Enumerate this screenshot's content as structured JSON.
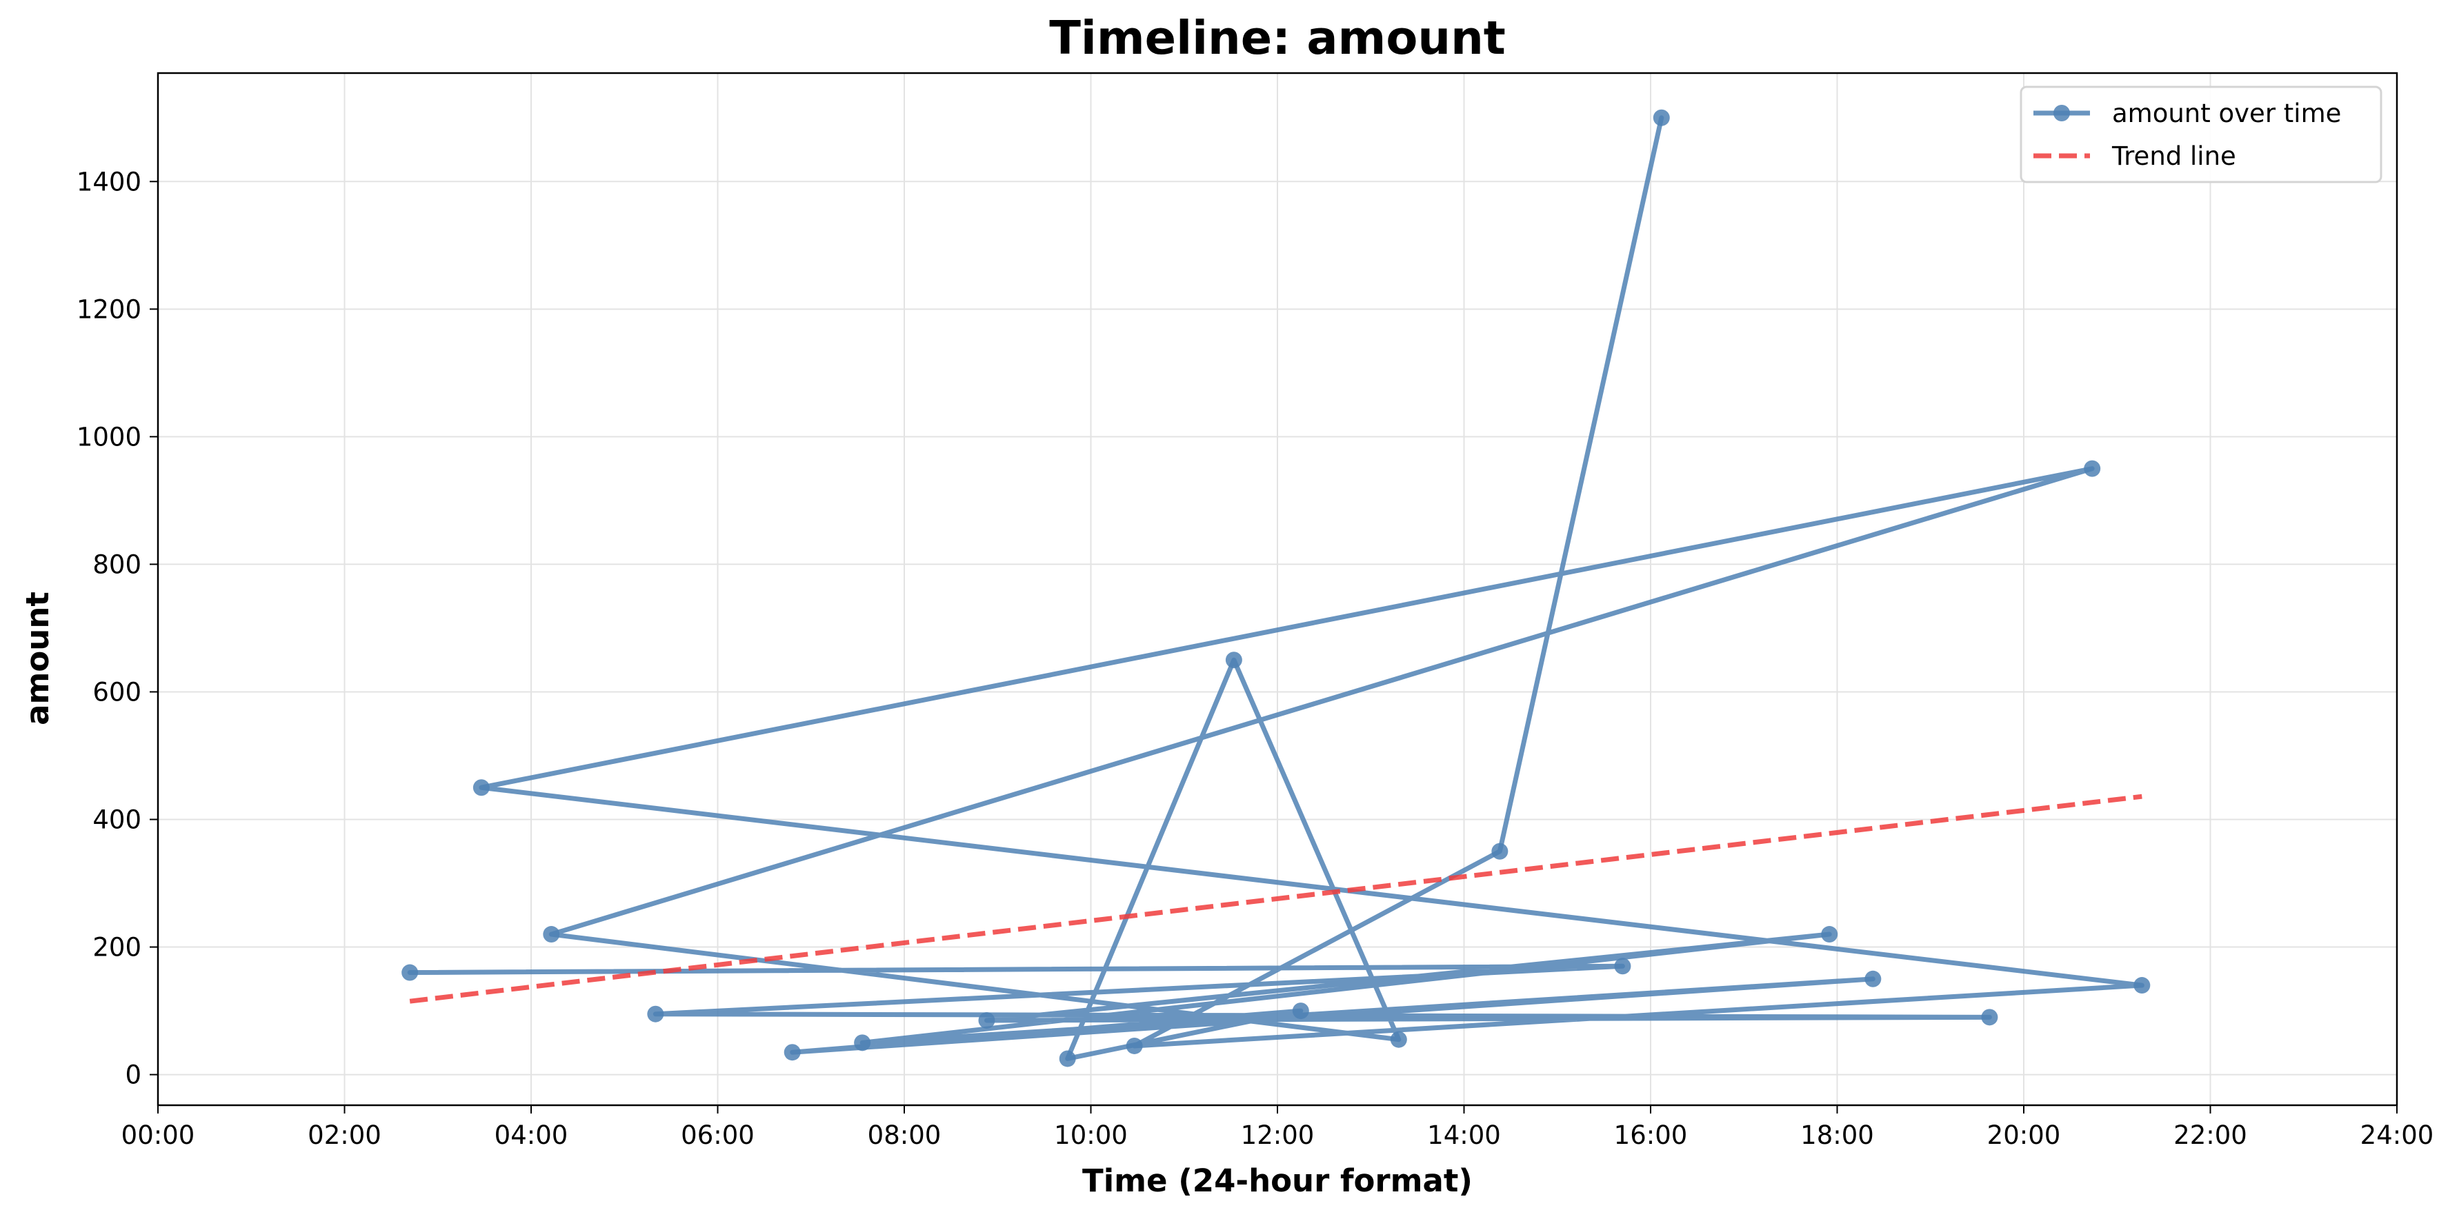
{
  "chart_data": {
    "type": "line",
    "title": "Timeline: amount",
    "xlabel": "Time (24-hour format)",
    "ylabel": "amount",
    "xlim": [
      0,
      24
    ],
    "ylim": [
      -48,
      1570
    ],
    "x_ticks": [
      0,
      2,
      4,
      6,
      8,
      10,
      12,
      14,
      16,
      18,
      20,
      22,
      24
    ],
    "x_tick_labels": [
      "00:00",
      "02:00",
      "04:00",
      "06:00",
      "08:00",
      "10:00",
      "12:00",
      "14:00",
      "16:00",
      "18:00",
      "20:00",
      "22:00",
      "24:00"
    ],
    "y_ticks": [
      0,
      200,
      400,
      600,
      800,
      1000,
      1200,
      1400
    ],
    "y_tick_labels": [
      "0",
      "200",
      "400",
      "600",
      "800",
      "1000",
      "1200",
      "1400"
    ],
    "grid": true,
    "legend_position": "top-right",
    "colors": {
      "series": "#4f81b4",
      "trend": "#f03c3c",
      "grid": "#e3e3e3"
    },
    "series": [
      {
        "name": "amount over time",
        "points": [
          {
            "x": "02:42",
            "y": 160
          },
          {
            "x": "15:42",
            "y": 170
          },
          {
            "x": "05:20",
            "y": 95
          },
          {
            "x": "19:38",
            "y": 90
          },
          {
            "x": "08:53",
            "y": 85
          },
          {
            "x": "17:55",
            "y": 220
          },
          {
            "x": "07:33",
            "y": 50
          },
          {
            "x": "18:23",
            "y": 150
          },
          {
            "x": "06:48",
            "y": 35
          },
          {
            "x": "12:15",
            "y": 100
          },
          {
            "x": "09:45",
            "y": 25
          },
          {
            "x": "11:32",
            "y": 650
          },
          {
            "x": "13:18",
            "y": 55
          },
          {
            "x": "04:13",
            "y": 220
          },
          {
            "x": "20:44",
            "y": 950
          },
          {
            "x": "03:28",
            "y": 450
          },
          {
            "x": "21:16",
            "y": 140
          },
          {
            "x": "10:28",
            "y": 45
          },
          {
            "x": "14:23",
            "y": 350
          },
          {
            "x": "16:07",
            "y": 1500
          }
        ]
      },
      {
        "name": "Trend line",
        "points": [
          {
            "x": "02:42",
            "y": 115
          },
          {
            "x": "21:16",
            "y": 436
          }
        ]
      }
    ]
  }
}
